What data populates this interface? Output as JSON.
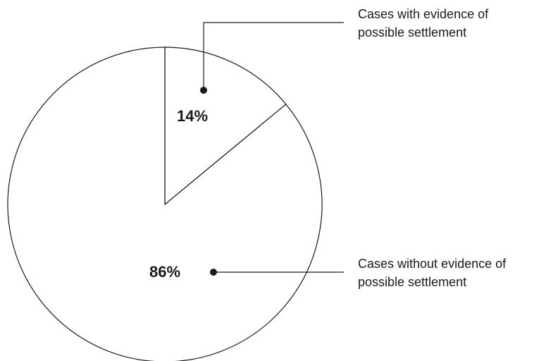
{
  "chart_data": {
    "type": "pie",
    "slices": [
      {
        "value": 14,
        "value_label": "14%",
        "label_lines": [
          "Cases with evidence of",
          "possible settlement"
        ]
      },
      {
        "value": 86,
        "value_label": "86%",
        "label_lines": [
          "Cases without evidence of",
          "possible settlement"
        ]
      }
    ],
    "start": "12 o'clock",
    "direction": "clockwise",
    "fill": "#ffffff",
    "stroke": "#1a1a1a",
    "legend": "none (callout labels)"
  }
}
